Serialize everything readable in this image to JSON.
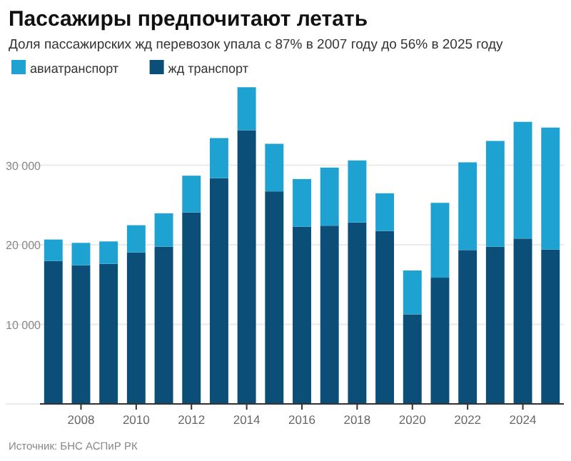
{
  "chart_data": {
    "type": "bar",
    "title": "Пассажиры предпочитают летать",
    "subtitle": "Доля пассажирских жд перевозок упала с 87% в 2007 году до 56% в 2025 году",
    "categories": [
      null,
      "2008",
      null,
      "2010",
      null,
      "2012",
      null,
      "2014",
      null,
      "2016",
      null,
      "2018",
      null,
      "2020",
      null,
      "2022",
      null,
      "2024",
      null
    ],
    "stacked": true,
    "series": [
      {
        "name": "жд транспорт",
        "color": "#0b4f79",
        "values": [
          17960,
          17430,
          17600,
          19040,
          19760,
          24070,
          28380,
          34400,
          26710,
          22280,
          22400,
          22810,
          21740,
          11260,
          15870,
          19340,
          19760,
          20780,
          19400
        ]
      },
      {
        "name": "авиатранспорт",
        "color": "#1ea2d2",
        "values": [
          2700,
          2810,
          2820,
          3420,
          4190,
          4610,
          5030,
          5400,
          5980,
          5980,
          7300,
          7790,
          4730,
          5510,
          9400,
          11020,
          13290,
          14670,
          15330
        ]
      }
    ],
    "ylim": [
      0,
      40000
    ],
    "yticks": [
      {
        "value": 0,
        "label": null
      },
      {
        "value": 10000,
        "label": "10 000"
      },
      {
        "value": 20000,
        "label": "20 000"
      },
      {
        "value": 30000,
        "label": "30 000"
      }
    ],
    "grid": "y",
    "legend": "top left",
    "annotations": [
      "Источник: БНС АСПиР РК"
    ]
  }
}
